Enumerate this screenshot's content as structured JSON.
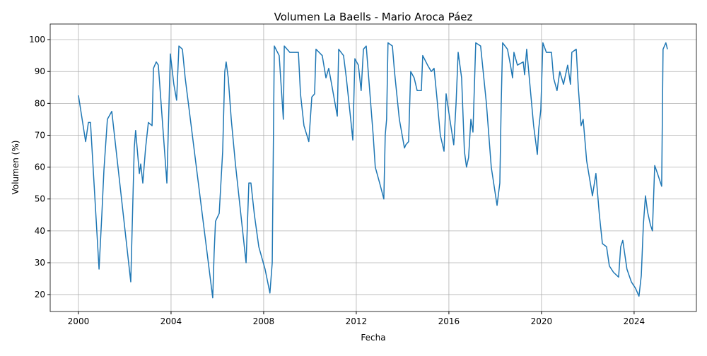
{
  "chart_data": {
    "type": "line",
    "title": "Volumen La Baells - Mario Aroca Páez",
    "x_label": "Fecha",
    "y_label": "Volumen (%)",
    "color": "#1f77b4",
    "grid": true,
    "x": [
      2000.0,
      2000.31,
      2000.43,
      2000.52,
      2000.89,
      2001.01,
      2001.1,
      2001.25,
      2001.44,
      2002.26,
      2002.41,
      2002.47,
      2002.63,
      2002.69,
      2002.78,
      2002.9,
      2003.02,
      2003.18,
      2003.24,
      2003.36,
      2003.45,
      2003.82,
      2003.97,
      2004.12,
      2004.24,
      2004.34,
      2004.49,
      2004.61,
      2005.8,
      2005.86,
      2005.92,
      2006.08,
      2006.23,
      2006.32,
      2006.38,
      2006.47,
      2006.6,
      2006.78,
      2007.24,
      2007.36,
      2007.45,
      2007.6,
      2007.79,
      2008.06,
      2008.27,
      2008.37,
      2008.46,
      2008.67,
      2008.85,
      2008.89,
      2009.13,
      2009.5,
      2009.59,
      2009.74,
      2009.95,
      2010.08,
      2010.2,
      2010.26,
      2010.53,
      2010.69,
      2010.81,
      2010.96,
      2011.18,
      2011.24,
      2011.45,
      2011.57,
      2011.76,
      2011.85,
      2011.94,
      2012.09,
      2012.21,
      2012.31,
      2012.43,
      2012.58,
      2012.73,
      2012.82,
      2013.01,
      2013.19,
      2013.25,
      2013.31,
      2013.37,
      2013.56,
      2013.65,
      2013.86,
      2014.08,
      2014.14,
      2014.26,
      2014.35,
      2014.5,
      2014.63,
      2014.81,
      2014.87,
      2015.08,
      2015.24,
      2015.36,
      2015.48,
      2015.63,
      2015.79,
      2015.88,
      2016.0,
      2016.21,
      2016.31,
      2016.4,
      2016.55,
      2016.67,
      2016.76,
      2016.85,
      2016.95,
      2017.04,
      2017.16,
      2017.37,
      2017.62,
      2017.83,
      2018.08,
      2018.2,
      2018.26,
      2018.32,
      2018.53,
      2018.66,
      2018.75,
      2018.81,
      2018.96,
      2019.21,
      2019.27,
      2019.36,
      2019.51,
      2019.66,
      2019.82,
      2019.88,
      2019.97,
      2020.06,
      2020.21,
      2020.43,
      2020.52,
      2020.67,
      2020.79,
      2020.95,
      2021.13,
      2021.25,
      2021.31,
      2021.5,
      2021.59,
      2021.71,
      2021.8,
      2021.95,
      2022.2,
      2022.35,
      2022.5,
      2022.63,
      2022.81,
      2022.93,
      2023.11,
      2023.33,
      2023.42,
      2023.51,
      2023.69,
      2023.88,
      2024.06,
      2024.21,
      2024.31,
      2024.4,
      2024.49,
      2024.58,
      2024.7,
      2024.79,
      2024.89,
      2025.01,
      2025.19,
      2025.25,
      2025.37,
      2025.44
    ],
    "values": [
      82.5,
      68,
      74,
      74,
      28,
      45,
      59,
      75,
      77.5,
      24,
      66,
      71.5,
      58,
      61,
      55,
      66,
      74,
      73,
      91,
      93,
      92,
      55,
      95.5,
      86,
      81,
      98,
      97,
      88,
      19,
      33,
      43,
      45.5,
      65,
      90,
      93,
      88,
      75,
      61,
      30,
      55,
      55,
      45,
      35,
      28,
      20.5,
      30,
      98,
      95,
      75,
      98,
      96,
      96,
      83,
      73,
      68,
      82,
      83,
      97,
      95,
      88,
      91,
      85,
      76,
      97,
      95,
      88,
      75,
      68.5,
      94,
      92,
      84,
      97,
      98,
      84,
      70,
      60,
      55,
      50,
      70,
      75,
      99,
      98,
      90,
      75,
      66,
      67,
      68,
      90,
      88,
      84,
      84,
      95,
      92,
      90,
      91,
      82,
      70,
      65,
      83,
      77,
      67,
      80,
      96,
      88,
      65,
      60,
      63,
      75,
      71,
      99,
      98,
      80,
      60,
      48,
      55,
      80,
      99,
      97,
      92,
      88,
      96,
      92,
      93,
      89,
      97,
      85,
      73,
      64,
      72,
      78,
      99,
      96,
      96,
      88,
      84,
      90,
      86,
      92,
      86,
      96,
      97,
      85,
      73,
      75,
      62,
      51,
      58,
      45,
      36,
      35,
      29,
      27,
      25.5,
      35,
      37,
      28,
      24,
      22,
      19.5,
      26,
      42,
      51,
      46,
      42,
      40,
      60.5,
      58,
      54,
      97,
      99,
      97
    ],
    "xlim": [
      1998.78,
      2026.69
    ],
    "xticks": [
      2000,
      2004,
      2008,
      2012,
      2016,
      2020,
      2024
    ],
    "ylim": [
      14.7,
      104.9
    ],
    "yticks": [
      20,
      30,
      40,
      50,
      60,
      70,
      80,
      90,
      100
    ]
  }
}
